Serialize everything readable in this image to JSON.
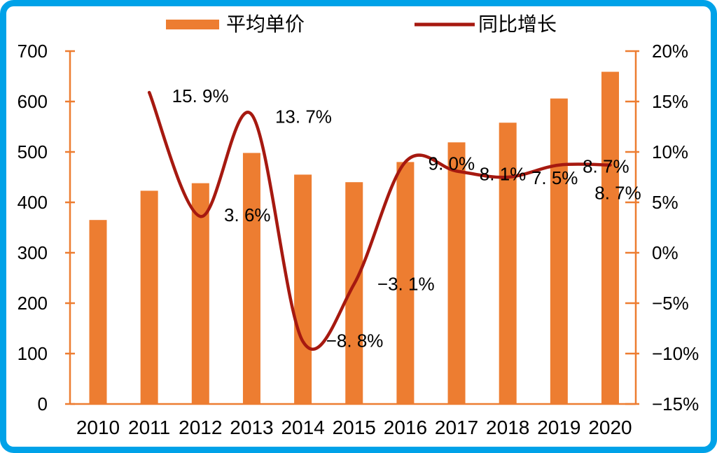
{
  "legend": [
    {
      "label": "平均单价",
      "type": "bar-swatch"
    },
    {
      "label": "同比增长",
      "type": "line-swatch"
    }
  ],
  "colors": {
    "bar": "#ED7D31",
    "line": "#A61910",
    "axis": "#ED7D31",
    "frame_border": "#00A2E8",
    "text": "#000000"
  },
  "chart_data": {
    "type": "bar",
    "combo": "bar+line",
    "title": "",
    "xlabel": "",
    "ylabel_left": "",
    "ylabel_right": "",
    "grid": false,
    "legend_position": "top",
    "categories": [
      "2010",
      "2011",
      "2012",
      "2013",
      "2014",
      "2015",
      "2016",
      "2017",
      "2018",
      "2019",
      "2020"
    ],
    "series": [
      {
        "name": "平均单价",
        "type": "bar",
        "axis": "left",
        "values": [
          365,
          423,
          438,
          498,
          455,
          440,
          480,
          519,
          558,
          606,
          659
        ]
      },
      {
        "name": "同比增长",
        "type": "line",
        "axis": "right",
        "values": [
          null,
          15.9,
          3.6,
          13.7,
          -8.8,
          -3.1,
          9.0,
          8.1,
          7.5,
          8.7,
          8.7
        ],
        "point_labels": [
          null,
          {
            "text": "15. 9%",
            "dx": 73,
            "dy": 5
          },
          {
            "text": "3. 6%",
            "dx": 67,
            "dy": -2
          },
          {
            "text": "13. 7%",
            "dx": 74,
            "dy": 3
          },
          {
            "text": "−8. 8%",
            "dx": 74,
            "dy": -1
          },
          {
            "text": "−3. 1%",
            "dx": 74,
            "dy": 0
          },
          {
            "text": "9. 0%",
            "dx": 66,
            "dy": 2
          },
          {
            "text": "8. 1%",
            "dx": 66,
            "dy": 4
          },
          {
            "text": "7. 5%",
            "dx": 67,
            "dy": 1
          },
          {
            "text": "8. 7%",
            "dx": 67,
            "dy": 2
          },
          {
            "text": "8. 7%",
            "dx": 11,
            "dy": 40
          }
        ]
      }
    ],
    "left_axis": {
      "min": 0,
      "max": 700,
      "step": 100,
      "tick_labels": [
        "0",
        "100",
        "200",
        "300",
        "400",
        "500",
        "600",
        "700"
      ]
    },
    "right_axis": {
      "min": -15,
      "max": 20,
      "step": 5,
      "tick_labels": [
        "−15%",
        "−10%",
        "−5%",
        "0%",
        "5%",
        "10%",
        "15%",
        "20%"
      ]
    }
  }
}
